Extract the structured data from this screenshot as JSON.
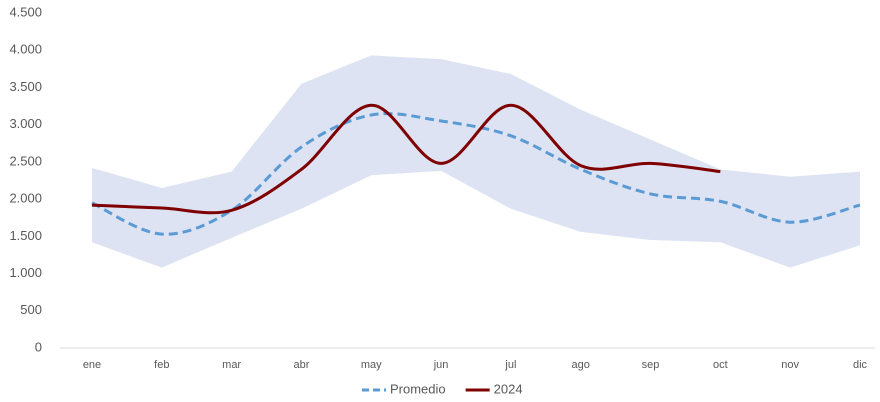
{
  "chart_data": {
    "type": "line",
    "categories": [
      "ene",
      "feb",
      "mar",
      "abr",
      "may",
      "jun",
      "jul",
      "ago",
      "sep",
      "oct",
      "nov",
      "dic"
    ],
    "band": {
      "color": "#dde3f2",
      "upper": [
        2420,
        2150,
        2370,
        3550,
        3930,
        3880,
        3680,
        3200,
        2800,
        2400,
        2300,
        2370
      ],
      "lower": [
        1420,
        1080,
        1480,
        1870,
        2320,
        2380,
        1870,
        1560,
        1450,
        1420,
        1080,
        1380
      ]
    },
    "series": [
      {
        "name": "Promedio",
        "color": "#5b9bd5",
        "dashed": true,
        "values": [
          1950,
          1530,
          1850,
          2700,
          3130,
          3050,
          2850,
          2400,
          2070,
          1970,
          1690,
          1920
        ]
      },
      {
        "name": "2024",
        "color": "#7f0000",
        "dashed": false,
        "values": [
          1920,
          1880,
          1850,
          2400,
          3260,
          2480,
          3260,
          2450,
          2480,
          2370,
          null,
          null
        ]
      }
    ],
    "ylim": [
      0,
      4500
    ],
    "yticks": [
      0,
      500,
      {
        "value": 1000,
        "label": "1.000"
      },
      {
        "value": 1500,
        "label": "1.500"
      },
      {
        "value": 2000,
        "label": "2.000"
      },
      {
        "value": 2500,
        "label": "2.500"
      },
      {
        "value": 3000,
        "label": "3.000"
      },
      {
        "value": 3500,
        "label": "3.500"
      },
      {
        "value": 4000,
        "label": "4.000"
      },
      {
        "value": 4500,
        "label": "4.500"
      }
    ],
    "grid": false,
    "legend": "bottom"
  }
}
